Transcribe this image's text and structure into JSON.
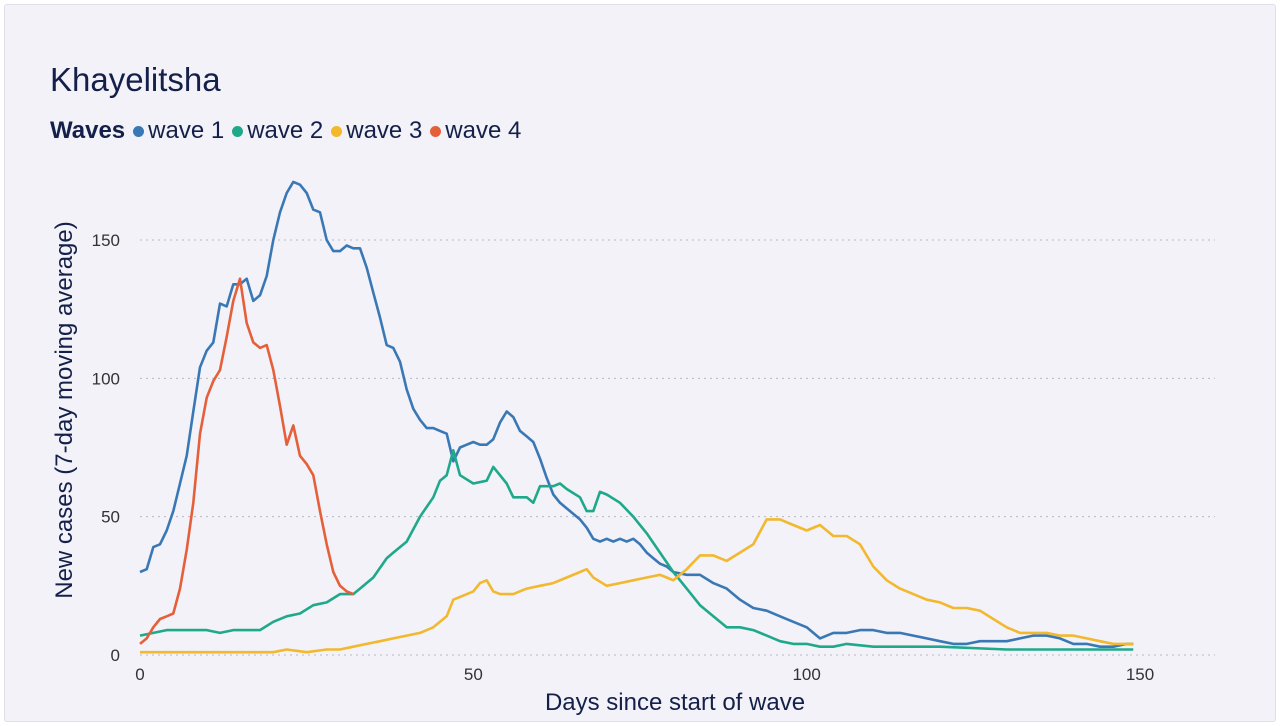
{
  "chart_data": {
    "type": "line",
    "title": "Khayelitsha",
    "legend_title": "Waves",
    "legend_placement": "top-left",
    "xlabel": "Days since start of wave",
    "ylabel": "New cases (7-day moving average)",
    "xlim": [
      0,
      150
    ],
    "ylim": [
      0,
      170
    ],
    "xticks": [
      "0",
      "50",
      "100",
      "150"
    ],
    "yticks": [
      "0",
      "50",
      "100",
      "150"
    ],
    "grid": "horizontal dotted",
    "series": [
      {
        "name": "wave 1",
        "color": "#3a78b5",
        "x": [
          0,
          1,
          2,
          3,
          4,
          5,
          6,
          7,
          8,
          9,
          10,
          11,
          12,
          13,
          14,
          15,
          16,
          17,
          18,
          19,
          20,
          21,
          22,
          23,
          24,
          25,
          26,
          27,
          28,
          29,
          30,
          31,
          32,
          33,
          34,
          35,
          36,
          37,
          38,
          39,
          40,
          41,
          42,
          43,
          44,
          45,
          46,
          47,
          48,
          49,
          50,
          51,
          52,
          53,
          54,
          55,
          56,
          57,
          58,
          59,
          60,
          61,
          62,
          63,
          64,
          65,
          66,
          67,
          68,
          69,
          70,
          71,
          72,
          73,
          74,
          75,
          76,
          77,
          78,
          79,
          80,
          82,
          84,
          86,
          88,
          90,
          92,
          94,
          96,
          98,
          100,
          102,
          104,
          106,
          108,
          110,
          112,
          114,
          116,
          118,
          120,
          122,
          124,
          126,
          128,
          130,
          132,
          134,
          136,
          138,
          140,
          142,
          144,
          146,
          148,
          149
        ],
        "y": [
          30,
          31,
          39,
          40,
          45,
          52,
          62,
          72,
          88,
          104,
          110,
          113,
          127,
          126,
          134,
          134,
          136,
          128,
          130,
          137,
          150,
          160,
          167,
          171,
          170,
          167,
          161,
          160,
          150,
          146,
          146,
          148,
          147,
          147,
          140,
          131,
          122,
          112,
          111,
          106,
          96,
          89,
          85,
          82,
          82,
          81,
          80,
          70,
          75,
          76,
          77,
          76,
          76,
          78,
          84,
          88,
          86,
          81,
          79,
          77,
          71,
          64,
          58,
          55,
          53,
          51,
          49,
          46,
          42,
          41,
          42,
          41,
          42,
          41,
          42,
          40,
          37,
          35,
          33,
          32,
          30,
          29,
          29,
          26,
          24,
          20,
          17,
          16,
          14,
          12,
          10,
          6,
          8,
          8,
          9,
          9,
          8,
          8,
          7,
          6,
          5,
          4,
          4,
          5,
          5,
          5,
          6,
          7,
          7,
          6,
          4,
          4,
          3,
          3,
          4,
          4
        ]
      },
      {
        "name": "wave 2",
        "color": "#1fa98a",
        "x": [
          0,
          2,
          4,
          6,
          8,
          10,
          12,
          14,
          16,
          18,
          20,
          22,
          24,
          26,
          28,
          30,
          32,
          33,
          35,
          37,
          38,
          40,
          42,
          44,
          45,
          46,
          47,
          48,
          50,
          52,
          53,
          55,
          56,
          58,
          59,
          60,
          62,
          63,
          64,
          66,
          67,
          68,
          69,
          70,
          72,
          74,
          76,
          78,
          80,
          82,
          84,
          86,
          88,
          90,
          92,
          94,
          96,
          98,
          100,
          102,
          104,
          106,
          110,
          120,
          130,
          140,
          149
        ],
        "y": [
          7,
          8,
          9,
          9,
          9,
          9,
          8,
          9,
          9,
          9,
          12,
          14,
          15,
          18,
          19,
          22,
          22,
          24,
          28,
          35,
          37,
          41,
          50,
          57,
          63,
          65,
          74,
          65,
          62,
          63,
          68,
          62,
          57,
          57,
          55,
          61,
          61,
          62,
          60,
          57,
          52,
          52,
          59,
          58,
          55,
          50,
          44,
          37,
          30,
          24,
          18,
          14,
          10,
          10,
          9,
          7,
          5,
          4,
          4,
          3,
          3,
          4,
          3,
          3,
          2,
          2,
          2
        ]
      },
      {
        "name": "wave 3",
        "color": "#f2b82e",
        "x": [
          0,
          10,
          15,
          20,
          22,
          25,
          28,
          30,
          32,
          34,
          36,
          38,
          40,
          42,
          44,
          46,
          47,
          48,
          50,
          51,
          52,
          53,
          54,
          56,
          58,
          60,
          62,
          64,
          66,
          67,
          68,
          70,
          72,
          74,
          76,
          78,
          79,
          80,
          82,
          84,
          86,
          88,
          90,
          92,
          94,
          96,
          98,
          100,
          102,
          104,
          106,
          108,
          110,
          112,
          114,
          116,
          118,
          120,
          122,
          124,
          126,
          128,
          130,
          132,
          134,
          136,
          138,
          140,
          142,
          144,
          146,
          149
        ],
        "y": [
          1,
          1,
          1,
          1,
          2,
          1,
          2,
          2,
          3,
          4,
          5,
          6,
          7,
          8,
          10,
          14,
          20,
          21,
          23,
          26,
          27,
          23,
          22,
          22,
          24,
          25,
          26,
          28,
          30,
          31,
          28,
          25,
          26,
          27,
          28,
          29,
          28,
          27,
          31,
          36,
          36,
          34,
          37,
          40,
          49,
          49,
          47,
          45,
          47,
          43,
          43,
          40,
          32,
          27,
          24,
          22,
          20,
          19,
          17,
          17,
          16,
          13,
          10,
          8,
          8,
          8,
          7,
          7,
          6,
          5,
          4,
          4
        ]
      },
      {
        "name": "wave 4",
        "color": "#e5603a",
        "x": [
          0,
          1,
          2,
          3,
          4,
          5,
          6,
          7,
          8,
          9,
          10,
          11,
          12,
          13,
          14,
          15,
          16,
          17,
          18,
          19,
          20,
          21,
          22,
          23,
          24,
          25,
          26,
          27,
          28,
          29,
          30,
          31,
          32
        ],
        "y": [
          4,
          6,
          10,
          13,
          14,
          15,
          24,
          38,
          55,
          80,
          93,
          99,
          103,
          115,
          128,
          136,
          120,
          113,
          111,
          112,
          103,
          90,
          76,
          83,
          72,
          69,
          65,
          52,
          40,
          30,
          25,
          23,
          22
        ]
      }
    ]
  }
}
